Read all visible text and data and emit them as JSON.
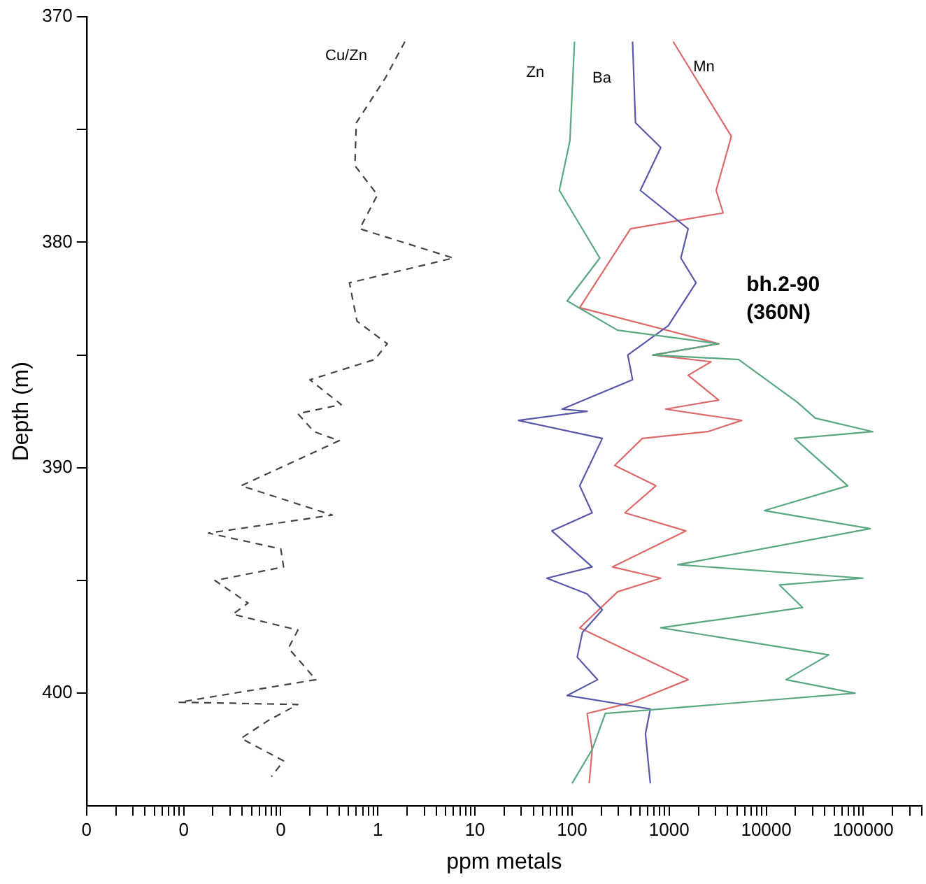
{
  "chart_data": {
    "type": "line",
    "xlabel": "ppm metals",
    "ylabel": "Depth (m)",
    "log": "x",
    "grid": false,
    "legend": false,
    "marker": "none",
    "xlim": [
      0.001,
      400000
    ],
    "xticks": [
      {
        "value": 0.001,
        "label": "0"
      },
      {
        "value": 0.002,
        "label": null
      },
      {
        "value": 0.003,
        "label": null
      },
      {
        "value": 0.004,
        "label": null
      },
      {
        "value": 0.005,
        "label": null
      },
      {
        "value": 0.006,
        "label": null
      },
      {
        "value": 0.007,
        "label": null
      },
      {
        "value": 0.008,
        "label": null
      },
      {
        "value": 0.009,
        "label": null
      },
      {
        "value": 0.01,
        "label": "0"
      },
      {
        "value": 0.02,
        "label": null
      },
      {
        "value": 0.03,
        "label": null
      },
      {
        "value": 0.04,
        "label": null
      },
      {
        "value": 0.05,
        "label": null
      },
      {
        "value": 0.06,
        "label": null
      },
      {
        "value": 0.07,
        "label": null
      },
      {
        "value": 0.08,
        "label": null
      },
      {
        "value": 0.09,
        "label": null
      },
      {
        "value": 0.1,
        "label": "0"
      },
      {
        "value": 0.2,
        "label": null
      },
      {
        "value": 0.3,
        "label": null
      },
      {
        "value": 0.4,
        "label": null
      },
      {
        "value": 0.5,
        "label": null
      },
      {
        "value": 0.6,
        "label": null
      },
      {
        "value": 0.7,
        "label": null
      },
      {
        "value": 0.8,
        "label": null
      },
      {
        "value": 0.9,
        "label": null
      },
      1,
      {
        "value": 2,
        "label": null
      },
      {
        "value": 3,
        "label": null
      },
      {
        "value": 4,
        "label": null
      },
      {
        "value": 5,
        "label": null
      },
      {
        "value": 6,
        "label": null
      },
      {
        "value": 7,
        "label": null
      },
      {
        "value": 8,
        "label": null
      },
      {
        "value": 9,
        "label": null
      },
      10,
      {
        "value": 20,
        "label": null
      },
      {
        "value": 30,
        "label": null
      },
      {
        "value": 40,
        "label": null
      },
      {
        "value": 50,
        "label": null
      },
      {
        "value": 60,
        "label": null
      },
      {
        "value": 70,
        "label": null
      },
      {
        "value": 80,
        "label": null
      },
      {
        "value": 90,
        "label": null
      },
      100,
      {
        "value": 200,
        "label": null
      },
      {
        "value": 300,
        "label": null
      },
      {
        "value": 400,
        "label": null
      },
      {
        "value": 500,
        "label": null
      },
      {
        "value": 600,
        "label": null
      },
      {
        "value": 700,
        "label": null
      },
      {
        "value": 800,
        "label": null
      },
      {
        "value": 900,
        "label": null
      },
      1000,
      {
        "value": 2000,
        "label": null
      },
      {
        "value": 3000,
        "label": null
      },
      {
        "value": 4000,
        "label": null
      },
      {
        "value": 5000,
        "label": null
      },
      {
        "value": 6000,
        "label": null
      },
      {
        "value": 7000,
        "label": null
      },
      {
        "value": 8000,
        "label": null
      },
      {
        "value": 9000,
        "label": null
      },
      10000,
      {
        "value": 20000,
        "label": null
      },
      {
        "value": 30000,
        "label": null
      },
      {
        "value": 40000,
        "label": null
      },
      {
        "value": 50000,
        "label": null
      },
      {
        "value": 60000,
        "label": null
      },
      {
        "value": 70000,
        "label": null
      },
      {
        "value": 80000,
        "label": null
      },
      {
        "value": 90000,
        "label": null
      },
      100000,
      {
        "value": 200000,
        "label": null
      },
      {
        "value": 300000,
        "label": null
      },
      {
        "value": 400000,
        "label": null
      }
    ],
    "ylim": [
      405,
      370
    ],
    "yticks": [
      370,
      {
        "value": 375,
        "label": null
      },
      380,
      {
        "value": 385,
        "label": null
      },
      390,
      {
        "value": 395,
        "label": null
      },
      400
    ],
    "annotations": [
      "bh.2-90 (360N)"
    ],
    "series": [
      {
        "name": "Cu/Zn",
        "color": "#444444",
        "line_style": "dashed",
        "x": [
          1.9,
          1.2,
          0.6,
          0.58,
          0.99,
          0.65,
          6,
          0.51,
          0.61,
          1.25,
          0.93,
          0.2,
          0.42,
          0.15,
          0.22,
          0.4,
          0.039,
          0.34,
          0.018,
          0.1,
          0.107,
          0.021,
          0.046,
          0.032,
          0.15,
          0.12,
          0.23,
          0.009,
          0.15,
          0.075,
          0.039,
          0.107,
          0.08
        ],
        "values": [
          371.1,
          372.7,
          374.7,
          376.6,
          377.9,
          379.4,
          380.7,
          381.8,
          383.5,
          384.5,
          385.2,
          386.1,
          387.2,
          387.6,
          388.4,
          388.8,
          390.8,
          392.1,
          392.9,
          393.6,
          394.4,
          395.0,
          396.0,
          396.5,
          397.2,
          398.0,
          399.4,
          400.4,
          400.5,
          401.2,
          402.0,
          403.0,
          403.7
        ]
      },
      {
        "name": "Zn",
        "color": "#5aa882",
        "line_style": "solid",
        "x": [
          106,
          95,
          74,
          193,
          89,
          294,
          3240,
          680,
          5200,
          21000,
          32000,
          125000,
          19600,
          69000,
          9600,
          118000,
          1230,
          99000,
          13700,
          23700,
          820,
          44000,
          16000,
          82000,
          220,
          161,
          100
        ],
        "values": [
          371.1,
          375.5,
          377.7,
          380.7,
          382.6,
          383.9,
          384.5,
          385.0,
          385.2,
          387.1,
          387.8,
          388.4,
          388.7,
          390.8,
          391.9,
          392.7,
          394.3,
          394.9,
          395.2,
          396.2,
          397.1,
          398.3,
          399.4,
          400.0,
          400.9,
          402.5,
          404.0
        ]
      },
      {
        "name": "Ba",
        "color": "#5858aa",
        "line_style": "solid",
        "x": [
          420,
          450,
          820,
          505,
          1570,
          1320,
          1890,
          980,
          375,
          420,
          79,
          143,
          28,
          205,
          120,
          161,
          62,
          161,
          55,
          143,
          205,
          128,
          113,
          183,
          89,
          640,
          570,
          640
        ],
        "values": [
          371.1,
          374.7,
          375.8,
          377.7,
          379.4,
          380.7,
          381.8,
          383.7,
          385.0,
          386.1,
          387.4,
          387.5,
          387.9,
          388.7,
          390.8,
          392.0,
          392.8,
          394.4,
          394.9,
          395.6,
          396.3,
          397.3,
          398.4,
          399.4,
          400.1,
          400.7,
          401.8,
          404.0
        ]
      },
      {
        "name": "Mn",
        "color": "#dd6a6a",
        "line_style": "solid",
        "x": [
          1100,
          4370,
          3050,
          3600,
          400,
          120,
          3240,
          680,
          2700,
          1570,
          3240,
          920,
          5600,
          2500,
          530,
          275,
          730,
          350,
          1490,
          260,
          820,
          295,
          120,
          1570,
          420,
          143,
          161,
          150
        ],
        "values": [
          371.1,
          375.3,
          377.7,
          378.7,
          379.4,
          382.9,
          384.5,
          385.0,
          385.3,
          385.9,
          387.0,
          387.4,
          387.9,
          388.4,
          388.7,
          389.9,
          390.8,
          392.0,
          392.8,
          394.4,
          394.9,
          395.5,
          397.1,
          399.4,
          400.4,
          400.9,
          402.5,
          404.0
        ]
      }
    ]
  }
}
